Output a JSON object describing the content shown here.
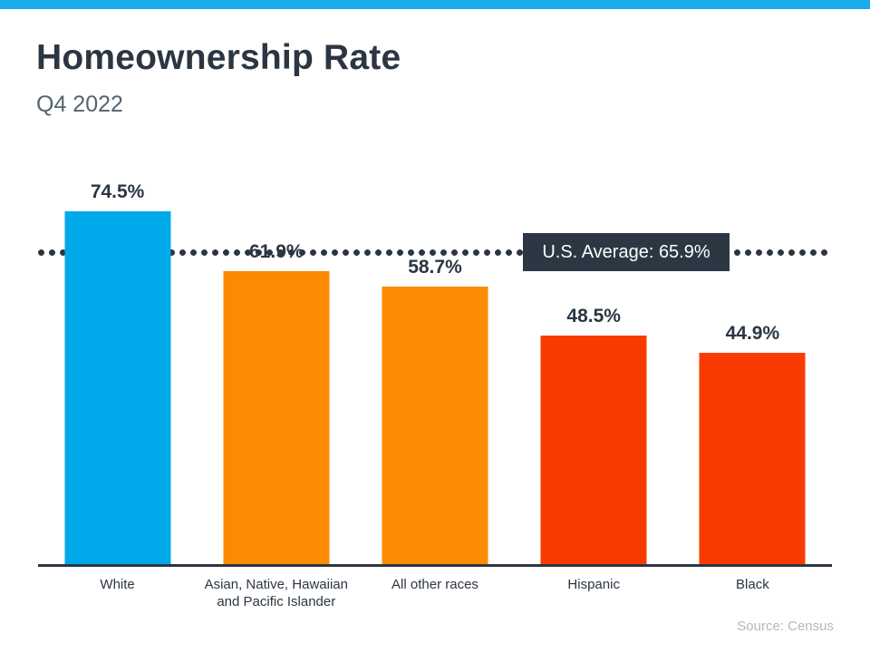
{
  "header": {
    "title": "Homeownership Rate",
    "subtitle": "Q4 2022"
  },
  "chart_data": {
    "type": "bar",
    "title": "Homeownership Rate",
    "subtitle": "Q4 2022",
    "categories": [
      "White",
      "Asian, Native, Hawaiian and Pacific Islander",
      "All other races",
      "Hispanic",
      "Black"
    ],
    "values": [
      74.5,
      61.9,
      58.7,
      48.5,
      44.9
    ],
    "value_labels": [
      "74.5%",
      "61.9%",
      "58.7%",
      "48.5%",
      "44.9%"
    ],
    "bar_colors": [
      "#00A9E9",
      "#FB8B00",
      "#FB8B00",
      "#FA3B01",
      "#FA3B01"
    ],
    "average": 65.9,
    "average_label": "U.S. Average: 65.9%",
    "average_line_style": "dotted",
    "ylim": [
      0,
      82
    ],
    "xlabel": "",
    "ylabel": "",
    "grid": false,
    "legend": false
  },
  "footer": {
    "source": "Source: Census"
  },
  "colors": {
    "accent_bar": "#1AABE9",
    "text_dark": "#2B3642",
    "subtitle_gray": "#54646E",
    "average_box_bg": "#2B3844",
    "average_box_text": "#FFFFFF",
    "source_gray": "#AFB9C1"
  }
}
